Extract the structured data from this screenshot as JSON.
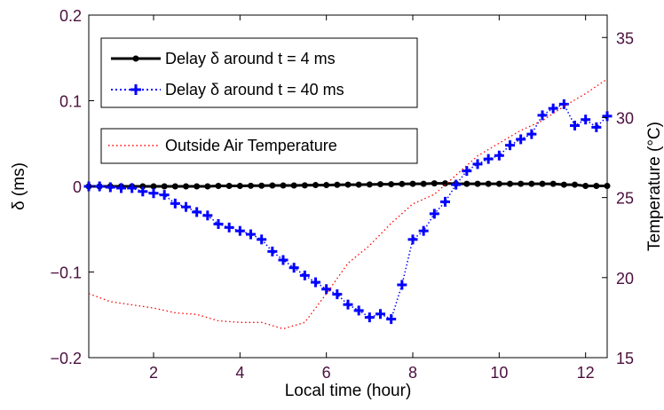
{
  "chart_data": {
    "type": "line",
    "xlabel": "Local time (hour)",
    "ylabel_left": "δ (ms)",
    "ylabel_right": "Temperature (°C)",
    "xlim": [
      0.5,
      12.5
    ],
    "ylim_left": [
      -0.2,
      0.2
    ],
    "ylim_right": [
      15,
      36.4
    ],
    "xticks": [
      2,
      4,
      6,
      8,
      10,
      12
    ],
    "yticks_left": [
      -0.2,
      -0.1,
      0,
      0.1,
      0.2
    ],
    "yticks_left_labels": [
      "−0.2",
      "−0.1",
      "0",
      "0.1",
      "0.2"
    ],
    "yticks_right": [
      15,
      20,
      25,
      30,
      35
    ],
    "series": [
      {
        "name": "Delay δ around t = 4 ms",
        "axis": "left",
        "color": "#000000",
        "marker": "dot",
        "line": "solid",
        "x": [
          0.5,
          0.75,
          1,
          1.25,
          1.5,
          1.75,
          2,
          2.25,
          2.5,
          2.75,
          3,
          3.25,
          3.5,
          3.75,
          4,
          4.25,
          4.5,
          4.75,
          5,
          5.25,
          5.5,
          5.75,
          6,
          6.25,
          6.5,
          6.75,
          7,
          7.25,
          7.5,
          7.75,
          8,
          8.25,
          8.5,
          8.75,
          9,
          9.25,
          9.5,
          9.75,
          10,
          10.25,
          10.5,
          10.75,
          11,
          11.25,
          11.5,
          11.75,
          12,
          12.25,
          12.5
        ],
        "y": [
          0,
          0,
          0,
          0,
          0,
          0,
          0,
          0,
          0,
          0,
          0,
          0,
          0.0005,
          0.0005,
          0.0005,
          0.0007,
          0.0008,
          0.001,
          0.001,
          0.001,
          0.0012,
          0.0015,
          0.0015,
          0.0018,
          0.002,
          0.002,
          0.0022,
          0.0025,
          0.0025,
          0.0028,
          0.003,
          0.003,
          0.0035,
          0.0035,
          0.003,
          0.003,
          0.003,
          0.003,
          0.003,
          0.003,
          0.003,
          0.003,
          0.003,
          0.003,
          0.002,
          0.002,
          0.0005,
          0.0005,
          0.0005
        ]
      },
      {
        "name": "Delay δ around t = 40 ms",
        "axis": "left",
        "color": "#0000ff",
        "marker": "plus",
        "line": "dotted",
        "x": [
          0.5,
          0.75,
          1,
          1.25,
          1.5,
          1.75,
          2,
          2.25,
          2.5,
          2.75,
          3,
          3.25,
          3.5,
          3.75,
          4,
          4.25,
          4.5,
          4.75,
          5,
          5.25,
          5.5,
          5.75,
          6,
          6.25,
          6.5,
          6.75,
          7,
          7.25,
          7.5,
          7.75,
          8,
          8.25,
          8.5,
          8.75,
          9,
          9.25,
          9.5,
          9.75,
          10,
          10.25,
          10.5,
          10.75,
          11,
          11.25,
          11.5,
          11.75,
          12,
          12.25,
          12.5
        ],
        "y": [
          0,
          0,
          -0.001,
          -0.002,
          -0.002,
          -0.006,
          -0.008,
          -0.01,
          -0.02,
          -0.024,
          -0.03,
          -0.034,
          -0.044,
          -0.048,
          -0.052,
          -0.056,
          -0.062,
          -0.076,
          -0.086,
          -0.095,
          -0.104,
          -0.112,
          -0.12,
          -0.126,
          -0.138,
          -0.145,
          -0.153,
          -0.149,
          -0.155,
          -0.115,
          -0.062,
          -0.052,
          -0.032,
          -0.018,
          0.002,
          0.018,
          0.026,
          0.032,
          0.036,
          0.048,
          0.055,
          0.061,
          0.083,
          0.091,
          0.096,
          0.071,
          0.078,
          0.069,
          0.082
        ]
      },
      {
        "name": "Outside Air Temperature",
        "axis": "right",
        "color": "#ff0000",
        "marker": "none",
        "line": "dotted",
        "x": [
          0.5,
          1,
          1.5,
          2,
          2.5,
          3,
          3.5,
          4,
          4.5,
          5,
          5.5,
          6,
          6.5,
          7,
          7.5,
          8,
          8.5,
          9,
          9.5,
          10,
          10.5,
          11,
          11.5,
          12,
          12.5
        ],
        "y": [
          19,
          18.5,
          18.3,
          18.1,
          17.8,
          17.7,
          17.3,
          17.2,
          17.2,
          16.8,
          17.2,
          19,
          20.9,
          22,
          23.4,
          24.6,
          25.2,
          26.4,
          27.6,
          28.4,
          29.2,
          29.8,
          30.7,
          31.5,
          32.4
        ]
      }
    ],
    "legend": {
      "position": "top-left",
      "entries": [
        "Delay δ around t = 4 ms",
        "Delay δ around t = 40 ms",
        "Outside Air Temperature"
      ]
    },
    "grid": false
  }
}
